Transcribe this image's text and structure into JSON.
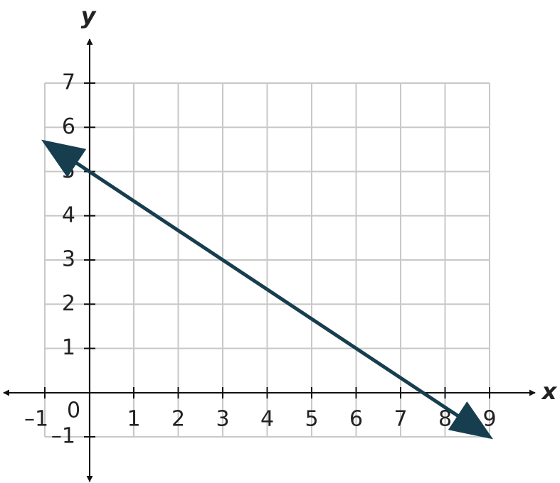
{
  "chart_data": {
    "type": "line",
    "x_label": "x",
    "y_label": "y",
    "x": [
      -1,
      9
    ],
    "series": [
      {
        "color": "#163e4f",
        "values": [
          5.667,
          -1
        ]
      }
    ],
    "xlim": [
      -1,
      9
    ],
    "ylim": [
      -1,
      7
    ],
    "xticks": [
      {
        "value": -1,
        "label": "–1"
      },
      0,
      1,
      2,
      3,
      4,
      5,
      6,
      7,
      8,
      9
    ],
    "yticks": [
      {
        "value": -1,
        "label": "–1"
      },
      1,
      2,
      3,
      4,
      5,
      6,
      7
    ],
    "grid": true
  }
}
